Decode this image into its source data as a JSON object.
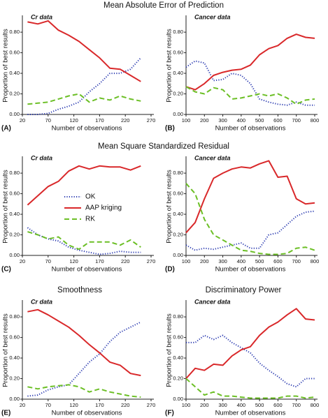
{
  "chart_data": [
    {
      "type": "line",
      "title": "Mean Absolute Error of Prediction",
      "subtitle": "Cr data",
      "panel_label": "(A)",
      "x_label": "Number of observations",
      "y_label": "Proportion of best results",
      "x": [
        30,
        50,
        70,
        90,
        110,
        130,
        150,
        170,
        190,
        210,
        230,
        250
      ],
      "xlim": [
        20,
        270
      ],
      "xticks": [
        20,
        70,
        120,
        170,
        220,
        270
      ],
      "ylim": [
        0,
        0.95
      ],
      "yticks": [
        {
          "value": 0,
          "label": "0.00"
        },
        {
          "value": 0.2,
          "label": "0.20"
        },
        {
          "value": 0.4,
          "label": "0.40"
        },
        {
          "value": 0.6,
          "label": "0.60"
        },
        {
          "value": 0.8,
          "label": "0.80"
        }
      ],
      "series": [
        {
          "name": "OK",
          "color": "#2a3ab0",
          "style": "dotted",
          "values": [
            0,
            0,
            0.01,
            0.05,
            0.08,
            0.12,
            0.22,
            0.3,
            0.4,
            0.4,
            0.44,
            0.55
          ]
        },
        {
          "name": "AAP kriging",
          "color": "#d9282a",
          "style": "solid",
          "values": [
            0.9,
            0.88,
            0.91,
            0.82,
            0.77,
            0.71,
            0.63,
            0.55,
            0.45,
            0.44,
            0.38,
            0.32
          ]
        },
        {
          "name": "RK",
          "color": "#6cbf26",
          "style": "dashed",
          "values": [
            0.1,
            0.11,
            0.12,
            0.15,
            0.18,
            0.2,
            0.12,
            0.16,
            0.14,
            0.18,
            0.15,
            0.13
          ]
        }
      ]
    },
    {
      "type": "line",
      "subtitle": "Cancer data",
      "panel_label": "(B)",
      "x_label": "Number of observations",
      "y_label": "Proportion of best results",
      "x": [
        100,
        150,
        200,
        250,
        300,
        350,
        400,
        450,
        500,
        550,
        600,
        650,
        700,
        750,
        800
      ],
      "xlim": [
        100,
        800
      ],
      "xticks": [
        100,
        200,
        300,
        400,
        500,
        600,
        700,
        800
      ],
      "ylim": [
        0,
        0.95
      ],
      "yticks": [
        {
          "value": 0,
          "label": "0.00"
        },
        {
          "value": 0.2,
          "label": "0.20"
        },
        {
          "value": 0.4,
          "label": "0.40"
        },
        {
          "value": 0.6,
          "label": "0.60"
        },
        {
          "value": 0.8,
          "label": "0.80"
        }
      ],
      "series": [
        {
          "name": "OK",
          "color": "#2a3ab0",
          "style": "dotted",
          "values": [
            0.46,
            0.52,
            0.5,
            0.33,
            0.34,
            0.4,
            0.38,
            0.3,
            0.15,
            0.12,
            0.1,
            0.09,
            0.12,
            0.09,
            0.09
          ]
        },
        {
          "name": "AAP kriging",
          "color": "#d9282a",
          "style": "solid",
          "values": [
            0.27,
            0.24,
            0.3,
            0.38,
            0.41,
            0.43,
            0.44,
            0.48,
            0.58,
            0.64,
            0.67,
            0.74,
            0.78,
            0.75,
            0.74
          ]
        },
        {
          "name": "RK",
          "color": "#6cbf26",
          "style": "dashed",
          "values": [
            0.27,
            0.22,
            0.2,
            0.26,
            0.24,
            0.15,
            0.16,
            0.18,
            0.2,
            0.18,
            0.2,
            0.16,
            0.1,
            0.14,
            0.15
          ]
        }
      ]
    },
    {
      "type": "line",
      "title": "Mean Square Standardized Residual",
      "subtitle": "Cr data",
      "panel_label": "(C)",
      "x_label": "Number of observations",
      "y_label": "Proportion of best results",
      "legend": true,
      "x": [
        30,
        50,
        70,
        90,
        110,
        130,
        150,
        170,
        190,
        210,
        230,
        250
      ],
      "xlim": [
        20,
        270
      ],
      "xticks": [
        20,
        70,
        120,
        170,
        220,
        270
      ],
      "ylim": [
        0,
        0.95
      ],
      "yticks": [
        {
          "value": 0,
          "label": "0.00"
        },
        {
          "value": 0.2,
          "label": "0.20"
        },
        {
          "value": 0.4,
          "label": "0.40"
        },
        {
          "value": 0.6,
          "label": "0.60"
        },
        {
          "value": 0.8,
          "label": "0.80"
        }
      ],
      "series": [
        {
          "name": "OK",
          "color": "#2a3ab0",
          "style": "dotted",
          "values": [
            0.27,
            0.2,
            0.16,
            0.14,
            0.08,
            0.05,
            0.03,
            0.01,
            0.02,
            0.04,
            0.03,
            0.03
          ]
        },
        {
          "name": "AAP kriging",
          "color": "#d9282a",
          "style": "solid",
          "values": [
            0.49,
            0.58,
            0.67,
            0.72,
            0.82,
            0.87,
            0.84,
            0.87,
            0.86,
            0.86,
            0.83,
            0.87
          ]
        },
        {
          "name": "RK",
          "color": "#6cbf26",
          "style": "dashed",
          "values": [
            0.23,
            0.2,
            0.16,
            0.18,
            0.1,
            0.06,
            0.13,
            0.13,
            0.13,
            0.1,
            0.15,
            0.08
          ]
        }
      ]
    },
    {
      "type": "line",
      "subtitle": "Cancer data",
      "panel_label": "(D)",
      "x_label": "Number of observations",
      "y_label": "Proportion of best results",
      "x": [
        100,
        150,
        200,
        250,
        300,
        350,
        400,
        450,
        500,
        550,
        600,
        650,
        700,
        750,
        800
      ],
      "xlim": [
        100,
        800
      ],
      "xticks": [
        100,
        200,
        300,
        400,
        500,
        600,
        700,
        800
      ],
      "ylim": [
        0,
        0.95
      ],
      "yticks": [
        {
          "value": 0,
          "label": "0.00"
        },
        {
          "value": 0.2,
          "label": "0.20"
        },
        {
          "value": 0.4,
          "label": "0.40"
        },
        {
          "value": 0.6,
          "label": "0.60"
        },
        {
          "value": 0.8,
          "label": "0.80"
        }
      ],
      "series": [
        {
          "name": "OK",
          "color": "#2a3ab0",
          "style": "dotted",
          "values": [
            0.1,
            0.05,
            0.07,
            0.06,
            0.08,
            0.1,
            0.12,
            0.07,
            0.07,
            0.2,
            0.22,
            0.3,
            0.38,
            0.42,
            0.43
          ]
        },
        {
          "name": "AAP kriging",
          "color": "#d9282a",
          "style": "solid",
          "values": [
            0.22,
            0.32,
            0.55,
            0.75,
            0.8,
            0.84,
            0.86,
            0.85,
            0.89,
            0.92,
            0.76,
            0.77,
            0.55,
            0.5,
            0.51
          ]
        },
        {
          "name": "RK",
          "color": "#6cbf26",
          "style": "dashed",
          "values": [
            0.7,
            0.6,
            0.35,
            0.2,
            0.15,
            0.1,
            0.05,
            0.04,
            0.02,
            0.01,
            0.01,
            0.02,
            0.07,
            0.08,
            0.05
          ]
        }
      ]
    },
    {
      "type": "line",
      "title": "Smoothness",
      "subtitle": "Cr data",
      "panel_label": "(E)",
      "x_label": "Number of observations",
      "y_label": "Proportion of best results",
      "x": [
        30,
        50,
        70,
        90,
        110,
        130,
        150,
        170,
        190,
        210,
        230,
        250
      ],
      "xlim": [
        20,
        270
      ],
      "xticks": [
        20,
        70,
        120,
        170,
        220,
        270
      ],
      "ylim": [
        0,
        0.95
      ],
      "yticks": [
        {
          "value": 0,
          "label": "0.00"
        },
        {
          "value": 0.2,
          "label": "0.20"
        },
        {
          "value": 0.4,
          "label": "0.40"
        },
        {
          "value": 0.6,
          "label": "0.60"
        },
        {
          "value": 0.8,
          "label": "0.80"
        }
      ],
      "series": [
        {
          "name": "OK",
          "color": "#2a3ab0",
          "style": "dotted",
          "values": [
            0.03,
            0.04,
            0.09,
            0.12,
            0.14,
            0.25,
            0.36,
            0.44,
            0.56,
            0.65,
            0.7,
            0.75
          ]
        },
        {
          "name": "AAP kriging",
          "color": "#d9282a",
          "style": "solid",
          "values": [
            0.85,
            0.87,
            0.82,
            0.76,
            0.7,
            0.62,
            0.53,
            0.45,
            0.36,
            0.33,
            0.25,
            0.23
          ]
        },
        {
          "name": "RK",
          "color": "#6cbf26",
          "style": "dashed",
          "values": [
            0.12,
            0.1,
            0.12,
            0.13,
            0.14,
            0.12,
            0.07,
            0.1,
            0.07,
            0.05,
            0.03,
            0.02
          ]
        }
      ]
    },
    {
      "type": "line",
      "title": "Discriminatory Power",
      "subtitle": "Cancer data",
      "panel_label": "(F)",
      "x_label": "Number of observations",
      "y_label": "Proportion of best results",
      "x": [
        100,
        150,
        200,
        250,
        300,
        350,
        400,
        450,
        500,
        550,
        600,
        650,
        700,
        750,
        800
      ],
      "xlim": [
        100,
        800
      ],
      "xticks": [
        100,
        200,
        300,
        400,
        500,
        600,
        700,
        800
      ],
      "ylim": [
        0,
        0.95
      ],
      "yticks": [
        {
          "value": 0,
          "label": "0.00"
        },
        {
          "value": 0.2,
          "label": "0.20"
        },
        {
          "value": 0.4,
          "label": "0.40"
        },
        {
          "value": 0.6,
          "label": "0.60"
        },
        {
          "value": 0.8,
          "label": "0.80"
        }
      ],
      "series": [
        {
          "name": "OK",
          "color": "#2a3ab0",
          "style": "dotted",
          "values": [
            0.55,
            0.55,
            0.62,
            0.58,
            0.62,
            0.55,
            0.5,
            0.45,
            0.35,
            0.28,
            0.22,
            0.15,
            0.12,
            0.2,
            0.2
          ]
        },
        {
          "name": "AAP kriging",
          "color": "#d9282a",
          "style": "solid",
          "values": [
            0.2,
            0.3,
            0.28,
            0.34,
            0.33,
            0.42,
            0.48,
            0.51,
            0.62,
            0.7,
            0.75,
            0.82,
            0.88,
            0.78,
            0.77
          ]
        },
        {
          "name": "RK",
          "color": "#6cbf26",
          "style": "dashed",
          "values": [
            0.2,
            0.12,
            0.04,
            0.07,
            0.03,
            0.03,
            0.02,
            0.01,
            0.01,
            0.01,
            0.01,
            0.03,
            0.03,
            0.01,
            0.02
          ]
        }
      ]
    }
  ]
}
